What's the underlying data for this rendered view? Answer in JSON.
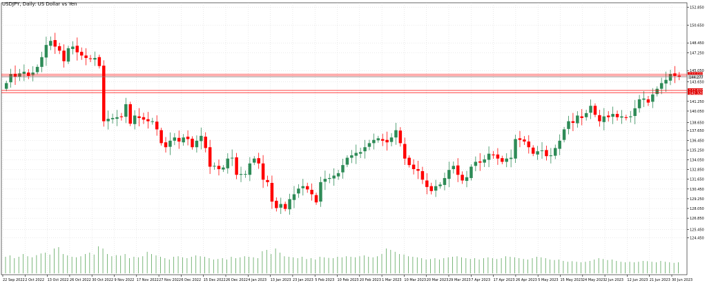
{
  "window": {
    "title": "USDJPY, Daily:  US Dollar vs Yen"
  },
  "colors": {
    "bull": "#2e8b57",
    "bear": "#ff0000",
    "grid": "#c8c8c8",
    "axis_text": "#000000",
    "volume": "#5aa55a",
    "level_line": "#ff0000",
    "current_line": "#808080",
    "price_box": "#e00000",
    "current_box": "#d0d0d0"
  },
  "chart_data": {
    "type": "candlestick",
    "title": "USDJPY, Daily:  US Dollar vs Yen",
    "y_ticks": [
      "152.850",
      "150.650",
      "148.450",
      "147.250",
      "145.050",
      "143.650",
      "141.250",
      "140.050",
      "138.650",
      "137.650",
      "136.450",
      "135.250",
      "134.050",
      "132.850",
      "131.650",
      "130.450",
      "129.250",
      "128.050",
      "126.850",
      "125.450",
      "124.450"
    ],
    "y_tick_values": [
      152.85,
      150.65,
      148.45,
      147.25,
      145.05,
      143.65,
      141.25,
      140.05,
      138.65,
      137.65,
      136.45,
      135.25,
      134.05,
      132.85,
      131.65,
      130.45,
      129.25,
      128.05,
      126.85,
      125.45,
      124.45
    ],
    "x_ticks": [
      "22 Sep 2022",
      "2 Oct 2022",
      "13 Oct 2022",
      "26 Oct 2022",
      "30 Oct 2022",
      "9 Nov 2022",
      "17 Nov 2022",
      "27 Nov 2022",
      "6 Dec 2022",
      "15 Dec 2022",
      "26 Dec 2022",
      "4 Jan 2023",
      "13 Jan 2023",
      "23 Jan 2023",
      "5 Feb 2023",
      "10 Feb 2023",
      "20 Feb 2023",
      "1 Mar 2023",
      "10 Mar 2023",
      "20 Mar 2023",
      "29 Mar 2023",
      "7 Apr 2023",
      "17 Apr 2023",
      "26 Apr 2023",
      "5 May 2023",
      "15 May 2023",
      "24 May 2023",
      "2 Jun 2023",
      "12 Jun 2023",
      "21 Jun 2023",
      "30 Jun 2023"
    ],
    "price_labels": [
      {
        "text": "144.600",
        "kind": "level"
      },
      {
        "text": "144.398",
        "kind": "level"
      },
      {
        "text": "144.277",
        "kind": "current"
      },
      {
        "text": "142.600",
        "kind": "level"
      },
      {
        "text": "142.320",
        "kind": "level"
      }
    ],
    "level_values": [
      144.6,
      144.398,
      142.6,
      142.32
    ],
    "current_price": 144.277,
    "close_series": [
      143.5,
      144.6,
      144.3,
      144.7,
      144.9,
      144.4,
      144.8,
      145.5,
      146.7,
      148.2,
      148.7,
      148.0,
      147.5,
      146.2,
      147.8,
      148.0,
      147.3,
      146.9,
      146.6,
      146.5,
      146.6,
      145.6,
      138.8,
      139.1,
      139.2,
      139.3,
      139.3,
      140.9,
      138.5,
      139.5,
      139.2,
      139.0,
      138.8,
      138.8,
      137.8,
      136.1,
      135.6,
      136.4,
      136.8,
      136.3,
      136.8,
      136.6,
      135.6,
      136.4,
      137.0,
      135.5,
      133.2,
      133.3,
      132.9,
      133.1,
      134.2,
      134.3,
      132.2,
      132.3,
      132.3,
      133.6,
      134.2,
      133.6,
      131.6,
      131.3,
      128.9,
      128.1,
      128.6,
      128.0,
      129.2,
      129.8,
      130.5,
      130.8,
      130.4,
      129.8,
      128.8,
      131.3,
      131.7,
      131.8,
      132.1,
      132.4,
      133.4,
      134.3,
      134.6,
      134.9,
      135.0,
      135.6,
      136.1,
      136.5,
      136.7,
      136.4,
      136.2,
      136.8,
      137.7,
      136.1,
      134.2,
      133.4,
      132.9,
      132.7,
      131.6,
      130.7,
      130.2,
      130.8,
      131.0,
      131.8,
      132.8,
      133.3,
      132.2,
      131.5,
      131.9,
      133.2,
      133.8,
      133.7,
      134.1,
      134.8,
      134.6,
      134.2,
      133.8,
      134.2,
      134.3,
      136.6,
      136.5,
      136.3,
      135.6,
      134.8,
      135.1,
      135.2,
      134.5,
      134.6,
      135.5,
      136.4,
      137.8,
      138.8,
      138.6,
      139.5,
      139.2,
      139.8,
      140.7,
      139.6,
      138.8,
      139.4,
      139.3,
      139.7,
      139.3,
      139.4,
      139.2,
      139.4,
      140.4,
      141.5,
      141.6,
      141.1,
      142.1,
      142.8,
      143.5,
      143.9,
      144.6,
      144.4,
      144.277
    ],
    "volume_series": [
      0.6,
      0.65,
      0.55,
      0.6,
      0.7,
      0.62,
      0.58,
      0.66,
      0.72,
      0.75,
      0.68,
      0.9,
      0.95,
      0.7,
      0.65,
      0.6,
      0.58,
      0.62,
      0.7,
      0.75,
      0.68,
      0.98,
      0.9,
      0.7,
      0.62,
      0.66,
      0.64,
      0.7,
      0.55,
      0.6,
      0.58,
      0.62,
      0.78,
      0.7,
      0.65,
      0.6,
      0.55,
      0.5,
      0.6,
      0.62,
      0.58,
      0.55,
      0.6,
      0.65,
      0.62,
      0.6,
      0.55,
      0.5,
      0.52,
      0.55,
      0.5,
      0.6,
      0.55,
      0.58,
      0.62,
      0.6,
      0.58,
      0.55,
      0.8,
      0.85,
      0.7,
      0.9,
      0.75,
      0.62,
      0.6,
      0.58,
      0.55,
      0.6,
      0.52,
      0.55,
      0.5,
      0.6,
      0.58,
      0.56,
      0.55,
      0.6,
      0.58,
      0.62,
      0.6,
      0.58,
      0.62,
      0.65,
      0.6,
      0.58,
      0.62,
      0.7,
      0.9,
      0.85,
      0.78,
      0.7,
      0.68,
      0.62,
      0.6,
      0.58,
      0.55,
      0.5,
      0.52,
      0.55,
      0.5,
      0.55,
      0.58,
      0.6,
      0.62,
      0.58,
      0.55,
      0.52,
      0.55,
      0.5,
      0.55,
      0.58,
      0.55,
      0.52,
      0.55,
      0.62,
      0.6,
      0.58,
      0.55,
      0.52,
      0.5,
      0.55,
      0.6,
      0.58,
      0.55,
      0.5,
      0.48,
      0.5,
      0.45,
      0.42,
      0.44,
      0.42,
      0.4,
      0.42,
      0.45,
      0.5,
      0.55,
      0.52,
      0.48,
      0.5,
      0.45,
      0.42,
      0.4,
      0.42,
      0.4,
      0.42,
      0.45,
      0.44,
      0.42,
      0.4,
      0.45,
      0.42,
      0.4,
      0.38,
      0.4
    ],
    "ylim": [
      123.8,
      153.4
    ]
  }
}
